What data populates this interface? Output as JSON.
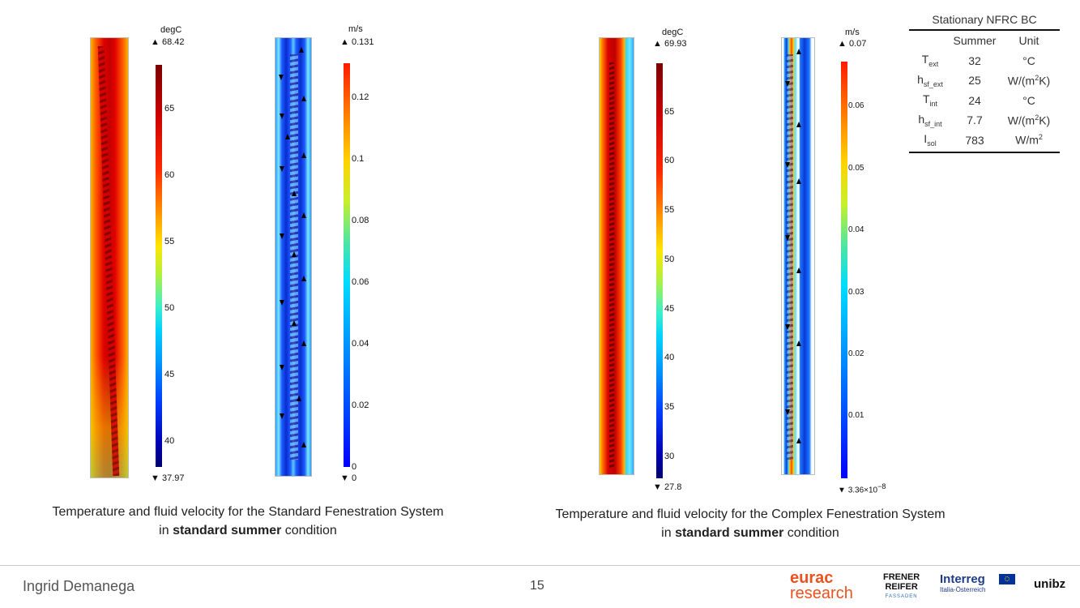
{
  "left_panel": {
    "temperature_unit": "degC",
    "temperature_max": "68.42",
    "temperature_min": "37.97",
    "temperature_ticks": [
      "65",
      "60",
      "55",
      "50",
      "45",
      "40"
    ],
    "velocity_unit": "m/s",
    "velocity_max": "0.131",
    "velocity_min": "0",
    "velocity_ticks": [
      "0.12",
      "0.1",
      "0.08",
      "0.06",
      "0.04",
      "0.02",
      "0"
    ],
    "caption_line1": "Temperature and fluid velocity for the Standard Fenestration System",
    "caption_line2_pre": "in ",
    "caption_line2_bold": "standard summer",
    "caption_line2_post": " condition"
  },
  "right_panel": {
    "temperature_unit": "degC",
    "temperature_max": "69.93",
    "temperature_min": "27.8",
    "temperature_ticks": [
      "65",
      "60",
      "55",
      "50",
      "45",
      "40",
      "35",
      "30"
    ],
    "velocity_unit": "m/s",
    "velocity_max": "0.07",
    "velocity_min_base": "3.36×10",
    "velocity_min_exp": "−8",
    "velocity_ticks": [
      "0.06",
      "0.05",
      "0.04",
      "0.03",
      "0.02",
      "0.01"
    ],
    "caption_line1": "Temperature and fluid velocity for the Complex Fenestration System",
    "caption_line2_pre": "in ",
    "caption_line2_bold": "standard summer",
    "caption_line2_post": " condition"
  },
  "bc_table": {
    "title": "Stationary NFRC BC",
    "headers": [
      "",
      "Summer",
      "Unit"
    ],
    "rows": [
      {
        "sym": "T",
        "sub": "ext",
        "value": "32",
        "unit": "°C",
        "unit_sup": ""
      },
      {
        "sym": "h",
        "sub": "sf_ext",
        "value": "25",
        "unit": "W/(m",
        "unit_sup": "2",
        "unit_tail": "K)"
      },
      {
        "sym": "T",
        "sub": "int",
        "value": "24",
        "unit": "°C",
        "unit_sup": ""
      },
      {
        "sym": "h",
        "sub": "sf_int",
        "value": "7.7",
        "unit": "W/(m",
        "unit_sup": "2",
        "unit_tail": "K)"
      },
      {
        "sym": "I",
        "sub": "sol",
        "value": "783",
        "unit": "W/m",
        "unit_sup": "2",
        "unit_tail": ""
      }
    ]
  },
  "footer": {
    "author": "Ingrid Demanega",
    "page": "15",
    "logo_eurac_1": "eurac",
    "logo_eurac_2": "research",
    "logo_frener_1": "FRENER",
    "logo_frener_2": "REIFER",
    "logo_frener_3": "FASSADEN",
    "logo_interreg_1": "Interreg",
    "logo_interreg_2": "Italia-Österreich",
    "logo_unibz": "unibz"
  },
  "colors": {
    "eurac_orange": "#e8531e",
    "interreg_blue": "#1f3c88",
    "eu_blue": "#003399"
  }
}
